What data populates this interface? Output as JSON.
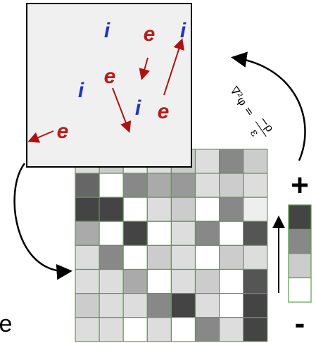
{
  "particles": [
    {
      "label": "i"
    },
    {
      "label": "e"
    },
    {
      "label": "i"
    },
    {
      "label": "i"
    },
    {
      "label": "e"
    },
    {
      "label": "i"
    },
    {
      "label": "e"
    },
    {
      "label": "e"
    }
  ],
  "equation": {
    "lhs": "∇²φ =",
    "numerator": "−ρ",
    "denominator": "ε"
  },
  "colorbar": {
    "plus": "+",
    "minus": "-"
  },
  "side_label": "e"
}
